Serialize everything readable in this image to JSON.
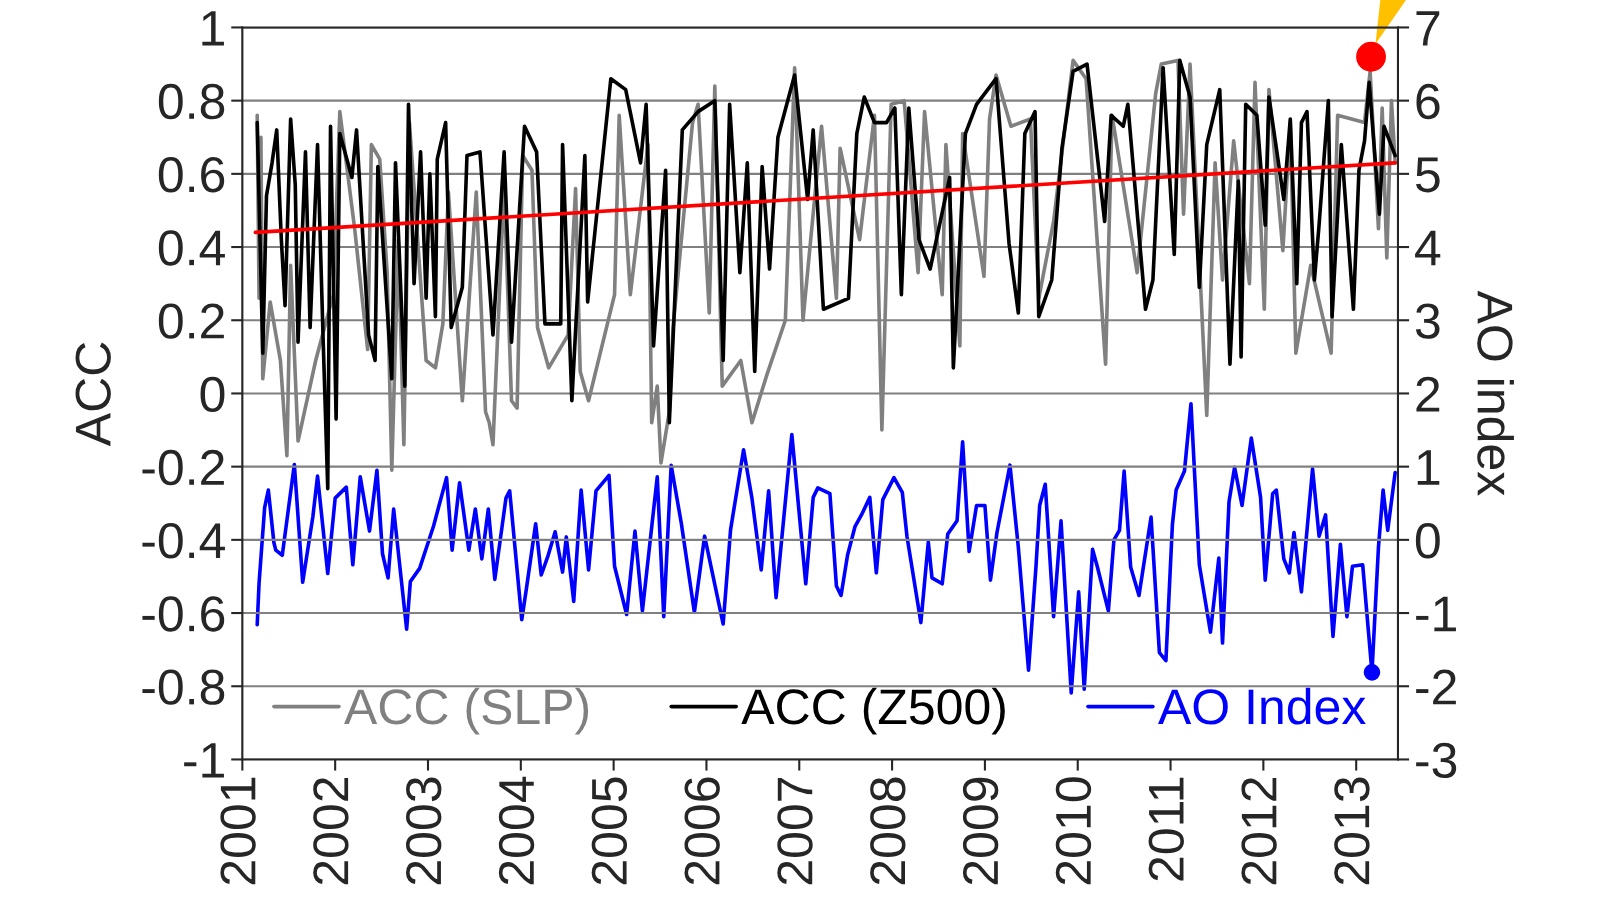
{
  "chart_data": {
    "type": "line",
    "ylabel": "ACC",
    "y2label": "AO index",
    "xlim": [
      2001,
      2013.45
    ],
    "xticks": [
      2001,
      2002,
      2003,
      2004,
      2005,
      2006,
      2007,
      2008,
      2009,
      2010,
      2011,
      2012,
      2013
    ],
    "ylim": [
      -1,
      1
    ],
    "yticks": [
      {
        "value": -1,
        "label": "-1"
      },
      {
        "value": -0.8,
        "label": "-0.8"
      },
      {
        "value": -0.6,
        "label": "-0.6"
      },
      {
        "value": -0.4,
        "label": "-0.4"
      },
      {
        "value": -0.2,
        "label": "-0.2"
      },
      0,
      0.2,
      0.4,
      0.6,
      0.8,
      1
    ],
    "y2lim": [
      -3,
      7
    ],
    "y2ticks": [
      {
        "value": -3,
        "label": "-3"
      },
      {
        "value": -2,
        "label": "-2"
      },
      {
        "value": -1,
        "label": "-1"
      },
      0,
      1,
      2,
      3,
      4,
      5,
      6,
      7
    ],
    "grid": "y",
    "legend": "bottom",
    "series": [
      {
        "name": "ACC (SLP)",
        "color": "#808080",
        "x": [
          2001.16,
          2001.18,
          2001.2,
          2001.22,
          2001.3,
          2001.41,
          2001.48,
          2001.52,
          2001.6,
          2001.79,
          2001.98,
          2002.05,
          2002.21,
          2002.35,
          2002.39,
          2002.48,
          2002.56,
          2002.61,
          2002.68,
          2002.74,
          2002.8,
          2002.98,
          2003.08,
          2003.16,
          2003.22,
          2003.37,
          2003.52,
          2003.62,
          2003.66,
          2003.7,
          2003.82,
          2003.9,
          2003.96,
          2004.02,
          2004.12,
          2004.18,
          2004.3,
          2004.51,
          2004.59,
          2004.64,
          2004.73,
          2005.01,
          2005.06,
          2005.18,
          2005.37,
          2005.41,
          2005.47,
          2005.51,
          2005.6,
          2005.64,
          2005.85,
          2005.91,
          2006.03,
          2006.09,
          2006.17,
          2006.37,
          2006.49,
          2006.65,
          2006.85,
          2006.95,
          2007.04,
          2007.24,
          2007.4,
          2007.44,
          2007.65,
          2007.81,
          2007.89,
          2007.99,
          2008.13,
          2008.28,
          2008.35,
          2008.54,
          2008.58,
          2008.73,
          2008.76,
          2008.99,
          2009.05,
          2009.12,
          2009.28,
          2009.49,
          2009.58,
          2009.74,
          2009.95,
          2010.09,
          2010.3,
          2010.37,
          2010.64,
          2010.84,
          2010.9,
          2011.08,
          2011.14,
          2011.21,
          2011.39,
          2011.48,
          2011.56,
          2011.68,
          2011.85,
          2011.91,
          2012.01,
          2012.06,
          2012.21,
          2012.29,
          2012.35,
          2012.51,
          2012.73,
          2012.8,
          2013.09,
          2013.15,
          2013.24,
          2013.28,
          2013.33,
          2013.38,
          2013.42
        ],
        "values": [
          0.76,
          0.26,
          0.7,
          0.04,
          0.25,
          0.09,
          -0.17,
          0.35,
          -0.13,
          0.09,
          0.27,
          0.77,
          0.45,
          0.12,
          0.68,
          0.64,
          0.33,
          -0.21,
          0.42,
          -0.14,
          0.74,
          0.09,
          0.07,
          0.19,
          0.55,
          -0.02,
          0.55,
          -0.05,
          -0.08,
          -0.14,
          0.57,
          -0.02,
          -0.04,
          0.65,
          0.61,
          0.18,
          0.07,
          0.16,
          0.56,
          0.06,
          -0.02,
          0.27,
          0.76,
          0.27,
          0.68,
          -0.08,
          0.02,
          -0.19,
          -0.05,
          0.18,
          0.74,
          0.79,
          0.22,
          0.84,
          0.02,
          0.09,
          -0.08,
          0.05,
          0.2,
          0.89,
          0.2,
          0.73,
          0.26,
          0.67,
          0.42,
          0.76,
          -0.1,
          0.79,
          0.8,
          0.33,
          0.77,
          0.27,
          0.68,
          0.13,
          0.71,
          0.32,
          0.75,
          0.87,
          0.73,
          0.75,
          0.26,
          0.47,
          0.91,
          0.86,
          0.08,
          0.76,
          0.33,
          0.82,
          0.9,
          0.91,
          0.49,
          0.9,
          -0.06,
          0.63,
          0.31,
          0.69,
          0.3,
          0.85,
          0.23,
          0.83,
          0.39,
          0.74,
          0.11,
          0.35,
          0.11,
          0.76,
          0.74,
          0.88,
          0.45,
          0.78,
          0.37,
          0.8,
          0.63
        ]
      },
      {
        "name": "ACC (Z500)",
        "color": "#000000",
        "x": [
          2001.16,
          2001.22,
          2001.26,
          2001.32,
          2001.37,
          2001.42,
          2001.46,
          2001.52,
          2001.57,
          2001.6,
          2001.68,
          2001.73,
          2001.81,
          2001.87,
          2001.92,
          2001.95,
          2002.01,
          2002.05,
          2002.18,
          2002.23,
          2002.36,
          2002.43,
          2002.46,
          2002.61,
          2002.65,
          2002.75,
          2002.79,
          2002.85,
          2002.92,
          2002.98,
          2003.02,
          2003.08,
          2003.1,
          2003.19,
          2003.25,
          2003.37,
          2003.42,
          2003.56,
          2003.7,
          2003.82,
          2003.9,
          2004.04,
          2004.17,
          2004.26,
          2004.43,
          2004.45,
          2004.55,
          2004.69,
          2004.72,
          2004.97,
          2005.13,
          2005.29,
          2005.35,
          2005.43,
          2005.56,
          2005.6,
          2005.74,
          2005.91,
          2006.09,
          2006.18,
          2006.25,
          2006.36,
          2006.44,
          2006.52,
          2006.6,
          2006.68,
          2006.77,
          2006.95,
          2007.09,
          2007.15,
          2007.26,
          2007.53,
          2007.62,
          2007.7,
          2007.81,
          2007.94,
          2008.03,
          2008.1,
          2008.18,
          2008.29,
          2008.41,
          2008.62,
          2008.66,
          2008.79,
          2008.91,
          2009.12,
          2009.26,
          2009.36,
          2009.43,
          2009.54,
          2009.58,
          2009.72,
          2009.83,
          2009.95,
          2010.1,
          2010.29,
          2010.36,
          2010.49,
          2010.54,
          2010.73,
          2010.81,
          2010.92,
          2011.04,
          2011.1,
          2011.21,
          2011.31,
          2011.39,
          2011.53,
          2011.64,
          2011.73,
          2011.76,
          2011.81,
          2011.93,
          2012.02,
          2012.06,
          2012.22,
          2012.29,
          2012.36,
          2012.41,
          2012.47,
          2012.55,
          2012.6,
          2012.7,
          2012.74,
          2012.84,
          2012.97,
          2013.03,
          2013.09,
          2013.14,
          2013.25,
          2013.3,
          2013.42
        ],
        "values": [
          0.74,
          0.11,
          0.54,
          0.63,
          0.72,
          0.42,
          0.24,
          0.75,
          0.57,
          0.14,
          0.66,
          0.18,
          0.68,
          0.15,
          -0.26,
          0.73,
          -0.07,
          0.71,
          0.59,
          0.72,
          0.16,
          0.09,
          0.62,
          0.04,
          0.63,
          0.02,
          0.79,
          0.3,
          0.66,
          0.26,
          0.6,
          0.21,
          0.64,
          0.74,
          0.18,
          0.29,
          0.65,
          0.66,
          0.16,
          0.66,
          0.14,
          0.73,
          0.66,
          0.19,
          0.19,
          0.68,
          -0.02,
          0.65,
          0.25,
          0.86,
          0.83,
          0.63,
          0.79,
          0.13,
          0.61,
          -0.08,
          0.72,
          0.77,
          0.8,
          0.09,
          0.79,
          0.33,
          0.63,
          0.06,
          0.62,
          0.34,
          0.7,
          0.87,
          0.53,
          0.72,
          0.23,
          0.26,
          0.71,
          0.81,
          0.74,
          0.74,
          0.78,
          0.27,
          0.78,
          0.42,
          0.34,
          0.59,
          0.07,
          0.71,
          0.79,
          0.86,
          0.41,
          0.22,
          0.71,
          0.77,
          0.21,
          0.31,
          0.67,
          0.88,
          0.9,
          0.47,
          0.76,
          0.73,
          0.79,
          0.23,
          0.31,
          0.89,
          0.38,
          0.91,
          0.81,
          0.29,
          0.68,
          0.83,
          0.08,
          0.58,
          0.1,
          0.79,
          0.76,
          0.46,
          0.81,
          0.53,
          0.75,
          0.3,
          0.74,
          0.77,
          0.31,
          0.46,
          0.8,
          0.21,
          0.68,
          0.23,
          0.61,
          0.69,
          0.85,
          0.49,
          0.73,
          0.65
        ]
      },
      {
        "name": "AO Index",
        "color": "#0000ff",
        "axis": "y2",
        "x": [
          2001.16,
          2001.18,
          2001.24,
          2001.28,
          2001.34,
          2001.36,
          2001.43,
          2001.56,
          2001.65,
          2001.76,
          2001.81,
          2001.92,
          2002.0,
          2002.12,
          2002.19,
          2002.27,
          2002.37,
          2002.45,
          2002.51,
          2002.57,
          2002.63,
          2002.77,
          2002.81,
          2002.91,
          2003.06,
          2003.2,
          2003.26,
          2003.34,
          2003.44,
          2003.51,
          2003.58,
          2003.65,
          2003.72,
          2003.84,
          2003.88,
          2004.01,
          2004.06,
          2004.16,
          2004.22,
          2004.29,
          2004.37,
          2004.45,
          2004.49,
          2004.57,
          2004.65,
          2004.73,
          2004.81,
          2004.95,
          2005.01,
          2005.14,
          2005.23,
          2005.31,
          2005.47,
          2005.54,
          2005.62,
          2005.73,
          2005.87,
          2005.98,
          2006.18,
          2006.26,
          2006.4,
          2006.49,
          2006.59,
          2006.67,
          2006.75,
          2006.92,
          2007.07,
          2007.15,
          2007.2,
          2007.33,
          2007.4,
          2007.45,
          2007.52,
          2007.6,
          2007.67,
          2007.76,
          2007.83,
          2007.9,
          2008.02,
          2008.11,
          2008.16,
          2008.31,
          2008.39,
          2008.43,
          2008.54,
          2008.6,
          2008.7,
          2008.76,
          2008.83,
          2008.91,
          2009.0,
          2009.06,
          2009.13,
          2009.27,
          2009.36,
          2009.47,
          2009.55,
          2009.59,
          2009.65,
          2009.74,
          2009.82,
          2009.93,
          2010.01,
          2010.07,
          2010.16,
          2010.21,
          2010.33,
          2010.39,
          2010.45,
          2010.5,
          2010.57,
          2010.66,
          2010.79,
          2010.88,
          2010.95,
          2011.02,
          2011.06,
          2011.15,
          2011.22,
          2011.31,
          2011.43,
          2011.52,
          2011.56,
          2011.63,
          2011.69,
          2011.77,
          2011.87,
          2011.97,
          2012.02,
          2012.1,
          2012.14,
          2012.22,
          2012.28,
          2012.33,
          2012.41,
          2012.53,
          2012.6,
          2012.67,
          2012.75,
          2012.83,
          2012.9,
          2012.96,
          2013.07,
          2013.17,
          2013.24,
          2013.29,
          2013.34,
          2013.42
        ],
        "values": [
          -1.16,
          -0.59,
          0.44,
          0.68,
          -0.04,
          -0.14,
          -0.21,
          1.03,
          -0.58,
          0.32,
          0.87,
          -0.46,
          0.57,
          0.72,
          -0.34,
          0.86,
          0.12,
          0.95,
          -0.19,
          -0.52,
          0.42,
          -1.22,
          -0.57,
          -0.39,
          0.19,
          0.85,
          -0.14,
          0.78,
          -0.14,
          0.42,
          -0.26,
          0.42,
          -0.54,
          0.57,
          0.67,
          -1.09,
          -0.67,
          0.22,
          -0.48,
          -0.23,
          0.11,
          -0.44,
          0.04,
          -0.84,
          0.68,
          -0.41,
          0.67,
          0.88,
          -0.36,
          -1.02,
          0.12,
          -0.97,
          0.86,
          -1.05,
          1.02,
          0.22,
          -0.99,
          0.05,
          -1.15,
          0.14,
          1.23,
          0.57,
          -0.41,
          0.67,
          -0.79,
          1.44,
          -0.6,
          0.58,
          0.71,
          0.63,
          -0.63,
          -0.76,
          -0.21,
          0.18,
          0.34,
          0.58,
          -0.45,
          0.55,
          0.85,
          0.65,
          0.05,
          -1.13,
          -0.03,
          -0.52,
          -0.6,
          0.08,
          0.26,
          1.34,
          -0.16,
          0.47,
          0.47,
          -0.55,
          0.1,
          1.02,
          -0.1,
          -1.78,
          -0.37,
          0.47,
          0.76,
          -1.05,
          0.26,
          -2.09,
          -0.71,
          -2.04,
          -0.13,
          -0.36,
          -0.97,
          0.0,
          0.13,
          0.94,
          -0.37,
          -0.76,
          0.31,
          -1.54,
          -1.65,
          0.21,
          0.68,
          0.94,
          1.86,
          -0.34,
          -1.26,
          -0.25,
          -1.41,
          0.52,
          0.99,
          0.47,
          1.39,
          0.58,
          -0.55,
          0.63,
          0.68,
          -0.26,
          -0.45,
          0.1,
          -0.71,
          0.97,
          0.05,
          0.34,
          -1.32,
          -0.06,
          -1.05,
          -0.36,
          -0.34,
          -1.81,
          -0.1,
          0.68,
          0.13,
          0.92
        ]
      },
      {
        "type": "line",
        "color": "#ff0000",
        "x": [
          2001.14,
          2013.42
        ],
        "values": [
          0.44,
          0.63
        ]
      },
      {
        "type": "scatter",
        "color": "#ff0000",
        "marker": "circle",
        "x": [
          2013.16
        ],
        "values": [
          0.92
        ]
      },
      {
        "type": "scatter",
        "color": "#0000ff",
        "marker": "circle",
        "axis": "y2",
        "x": [
          2013.17
        ],
        "values": [
          -1.81
        ]
      }
    ]
  }
}
